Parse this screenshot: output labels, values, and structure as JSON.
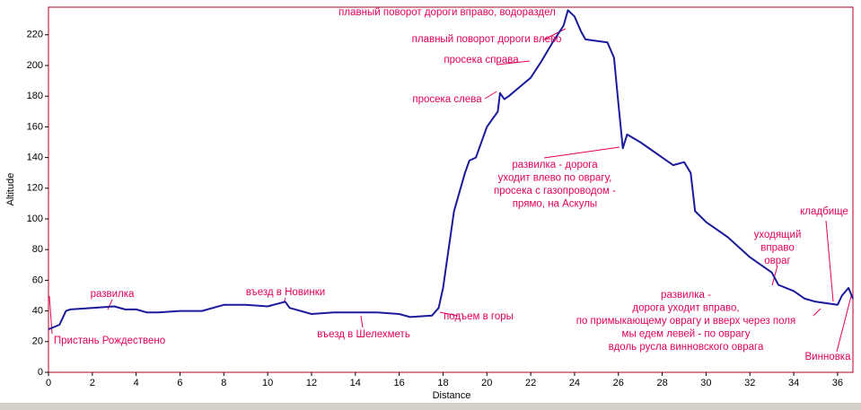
{
  "chart_data": {
    "type": "line",
    "x_label": "Distance",
    "y_label": "Altitude",
    "xlim": [
      0,
      36.7
    ],
    "ylim": [
      0,
      238
    ],
    "xticks": [
      0,
      2,
      4,
      6,
      8,
      10,
      12,
      14,
      16,
      18,
      20,
      22,
      24,
      26,
      28,
      30,
      32,
      34,
      36
    ],
    "yticks": [
      0,
      20,
      40,
      60,
      80,
      100,
      120,
      140,
      160,
      180,
      200,
      220
    ],
    "series": [
      {
        "name": "Altitude",
        "color": "#1a1a9a",
        "x": [
          0,
          0.5,
          0.8,
          1,
          2,
          3,
          3.5,
          4,
          4.5,
          5,
          6,
          7,
          8,
          9,
          10,
          10.8,
          11,
          12,
          13,
          14,
          15,
          16,
          16.5,
          17.5,
          17.8,
          18,
          18.3,
          18.5,
          18.8,
          19,
          19.2,
          19.5,
          20,
          20.5,
          20.6,
          20.8,
          21,
          21.5,
          22,
          22.5,
          23,
          23.5,
          23.7,
          24,
          24.3,
          24.5,
          25,
          25.5,
          25.8,
          26,
          26.2,
          26.4,
          27,
          27.5,
          28,
          28.5,
          29,
          29.3,
          29.5,
          30,
          31,
          32,
          33,
          33.3,
          34,
          34.5,
          35,
          35.5,
          36,
          36.2,
          36.5,
          36.7
        ],
        "values": [
          28,
          31,
          40,
          41,
          42,
          43,
          41,
          41,
          39,
          39,
          40,
          40,
          44,
          44,
          43,
          46,
          42,
          38,
          39,
          39,
          39,
          38,
          36,
          37,
          42,
          55,
          85,
          105,
          120,
          130,
          138,
          140,
          160,
          170,
          182,
          178,
          180,
          186,
          192,
          203,
          215,
          226,
          236,
          232,
          222,
          217,
          216,
          215,
          205,
          175,
          146,
          155,
          150,
          145,
          140,
          135,
          137,
          130,
          105,
          98,
          88,
          75,
          65,
          57,
          53,
          48,
          46,
          45,
          44,
          50,
          55,
          48
        ]
      }
    ],
    "annotations": [
      [
        "плавный поворот дороги вправо, водораздел"
      ],
      [
        "плавный поворот дороги влево"
      ],
      [
        "просека справа"
      ],
      [
        "просека слева"
      ],
      [
        "развилка - дорога",
        "уходит влево по оврагу,",
        "просека с газопроводом -",
        "прямо, на Аскулы"
      ],
      [
        "уходящий",
        "вправо",
        "овраг"
      ],
      [
        "кладбище"
      ],
      [
        "развилка -",
        "дорога уходит вправо,",
        "по примыкающему оврагу и вверх через поля",
        "мы едем левей - по оврагу",
        "вдоль русла винновского оврага"
      ],
      [
        "Винновка"
      ],
      [
        "подъем в горы"
      ],
      [
        "въезд в Шелехметь"
      ],
      [
        "въезд в Новинки"
      ],
      [
        "развилка"
      ],
      [
        "Пристань Рождествено"
      ]
    ]
  }
}
